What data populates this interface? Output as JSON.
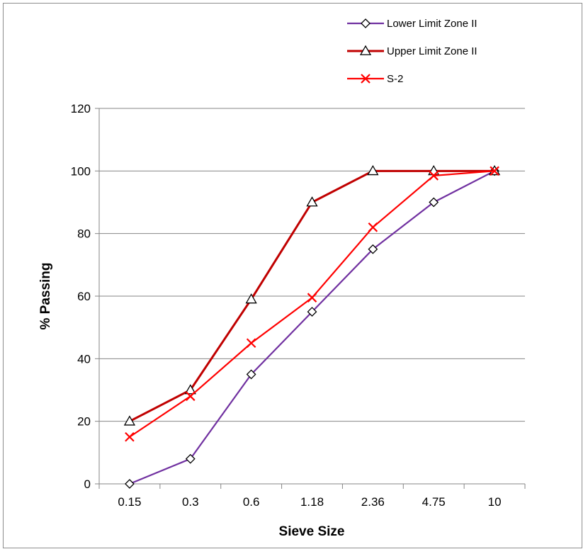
{
  "chart_data": {
    "type": "line",
    "title": "",
    "xlabel": "Sieve Size",
    "ylabel": "% Passing",
    "categories": [
      "0.15",
      "0.3",
      "0.6",
      "1.18",
      "2.36",
      "4.75",
      "10"
    ],
    "ylim": [
      0,
      120
    ],
    "yticks": [
      "0",
      "20",
      "40",
      "60",
      "80",
      "100",
      "120"
    ],
    "grid": "horizontal",
    "legend_position": "top-right",
    "series": [
      {
        "name": "Lower Limit Zone II",
        "values": [
          0,
          8,
          35,
          55,
          75,
          90,
          100
        ],
        "color": "#7030a0",
        "marker": "diamond"
      },
      {
        "name": "Upper Limit Zone II",
        "values": [
          20,
          30,
          59,
          90,
          100,
          100,
          100
        ],
        "color": "#c00000",
        "marker": "triangle"
      },
      {
        "name": "S-2",
        "values": [
          15,
          28,
          45,
          59.5,
          82,
          98.5,
          100
        ],
        "color": "#ff0000",
        "marker": "x"
      }
    ]
  }
}
